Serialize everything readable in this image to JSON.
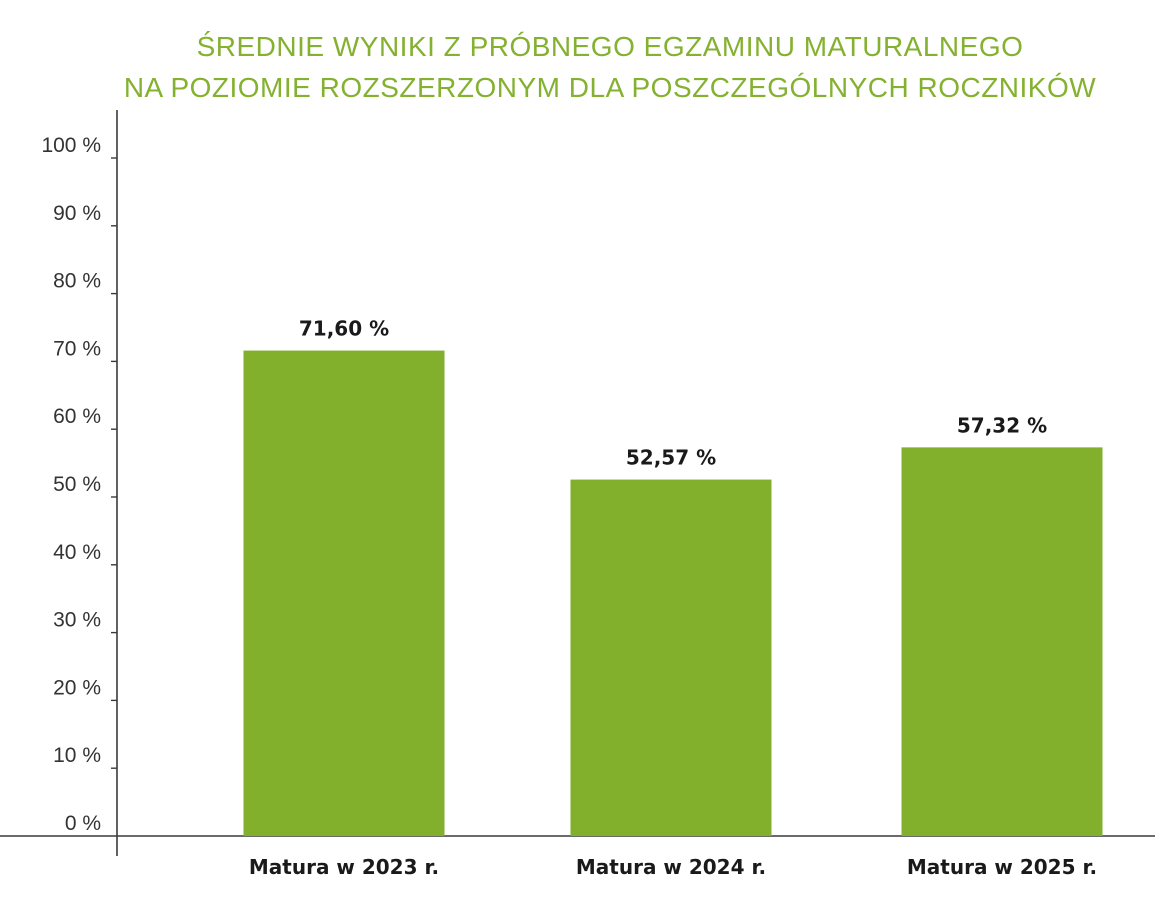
{
  "chart_data": {
    "type": "bar",
    "title_lines": [
      "ŚREDNIE WYNIKI Z PRÓBNEGO EGZAMINU MATURALNEGO",
      "NA POZIOMIE ROZSZERZONYM DLA POSZCZEGÓLNYCH ROCZNIKÓW"
    ],
    "categories": [
      "Matura w 2023 r.",
      "Matura w 2024 r.",
      "Matura w 2025 r."
    ],
    "values": [
      71.6,
      52.57,
      57.32
    ],
    "value_labels": [
      "71,60 %",
      "52,57 %",
      "57,32 %"
    ],
    "ylim": [
      0,
      100
    ],
    "y_ticks": [
      0,
      10,
      20,
      30,
      40,
      50,
      60,
      70,
      80,
      90,
      100
    ],
    "y_tick_labels": [
      "0 %",
      "10 %",
      "20 %",
      "30 %",
      "40 %",
      "50 %",
      "60 %",
      "70 %",
      "80 %",
      "90 %",
      "100 %"
    ],
    "xlabel": "",
    "ylabel": "",
    "grid": false,
    "legend": "none",
    "bar_color": "#82b02c",
    "title_color": "#84b130"
  }
}
